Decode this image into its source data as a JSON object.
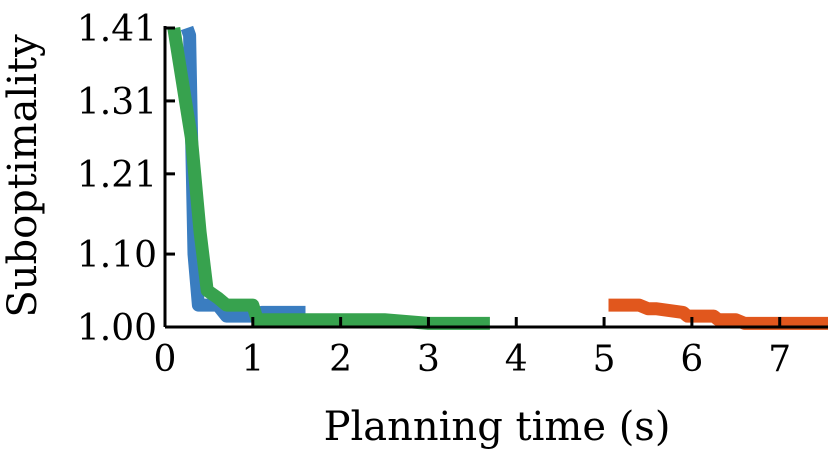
{
  "chart_data": {
    "type": "line",
    "xlabel": "Planning time (s)",
    "ylabel": "Suboptimality",
    "xlim": [
      0,
      7.55
    ],
    "ylim": [
      1.0,
      1.41
    ],
    "x_ticks": [
      0,
      1,
      2,
      3,
      4,
      5,
      6,
      7
    ],
    "y_ticks": [
      1.0,
      1.1,
      1.21,
      1.31,
      1.41
    ],
    "y_tick_labels": [
      "1.00",
      "1.10",
      "1.21",
      "1.31",
      "1.41"
    ],
    "x_tick_labels": [
      "0",
      "1",
      "2",
      "3",
      "4",
      "5",
      "6",
      "7"
    ],
    "grid": false,
    "series": [
      {
        "color": "#3a7dc0",
        "x": [
          0.25,
          0.28,
          0.3,
          0.33,
          0.38,
          0.45,
          0.6,
          0.7,
          1.05,
          1.1,
          1.6
        ],
        "y": [
          1.41,
          1.4,
          1.28,
          1.1,
          1.03,
          1.03,
          1.03,
          1.015,
          1.015,
          1.02,
          1.02
        ]
      },
      {
        "color": "#37a24e",
        "x": [
          0.1,
          0.3,
          0.4,
          0.48,
          0.6,
          0.7,
          1.0,
          1.05,
          1.1,
          1.5,
          2.5,
          3.0,
          3.7
        ],
        "y": [
          1.41,
          1.26,
          1.13,
          1.05,
          1.04,
          1.03,
          1.03,
          1.01,
          1.01,
          1.01,
          1.01,
          1.005,
          1.005
        ]
      },
      {
        "color": "#e1571d",
        "x": [
          5.05,
          5.4,
          5.5,
          5.6,
          5.9,
          5.95,
          6.25,
          6.3,
          6.5,
          6.6,
          7.55
        ],
        "y": [
          1.03,
          1.03,
          1.025,
          1.025,
          1.02,
          1.015,
          1.015,
          1.01,
          1.01,
          1.005,
          1.005
        ]
      }
    ]
  }
}
